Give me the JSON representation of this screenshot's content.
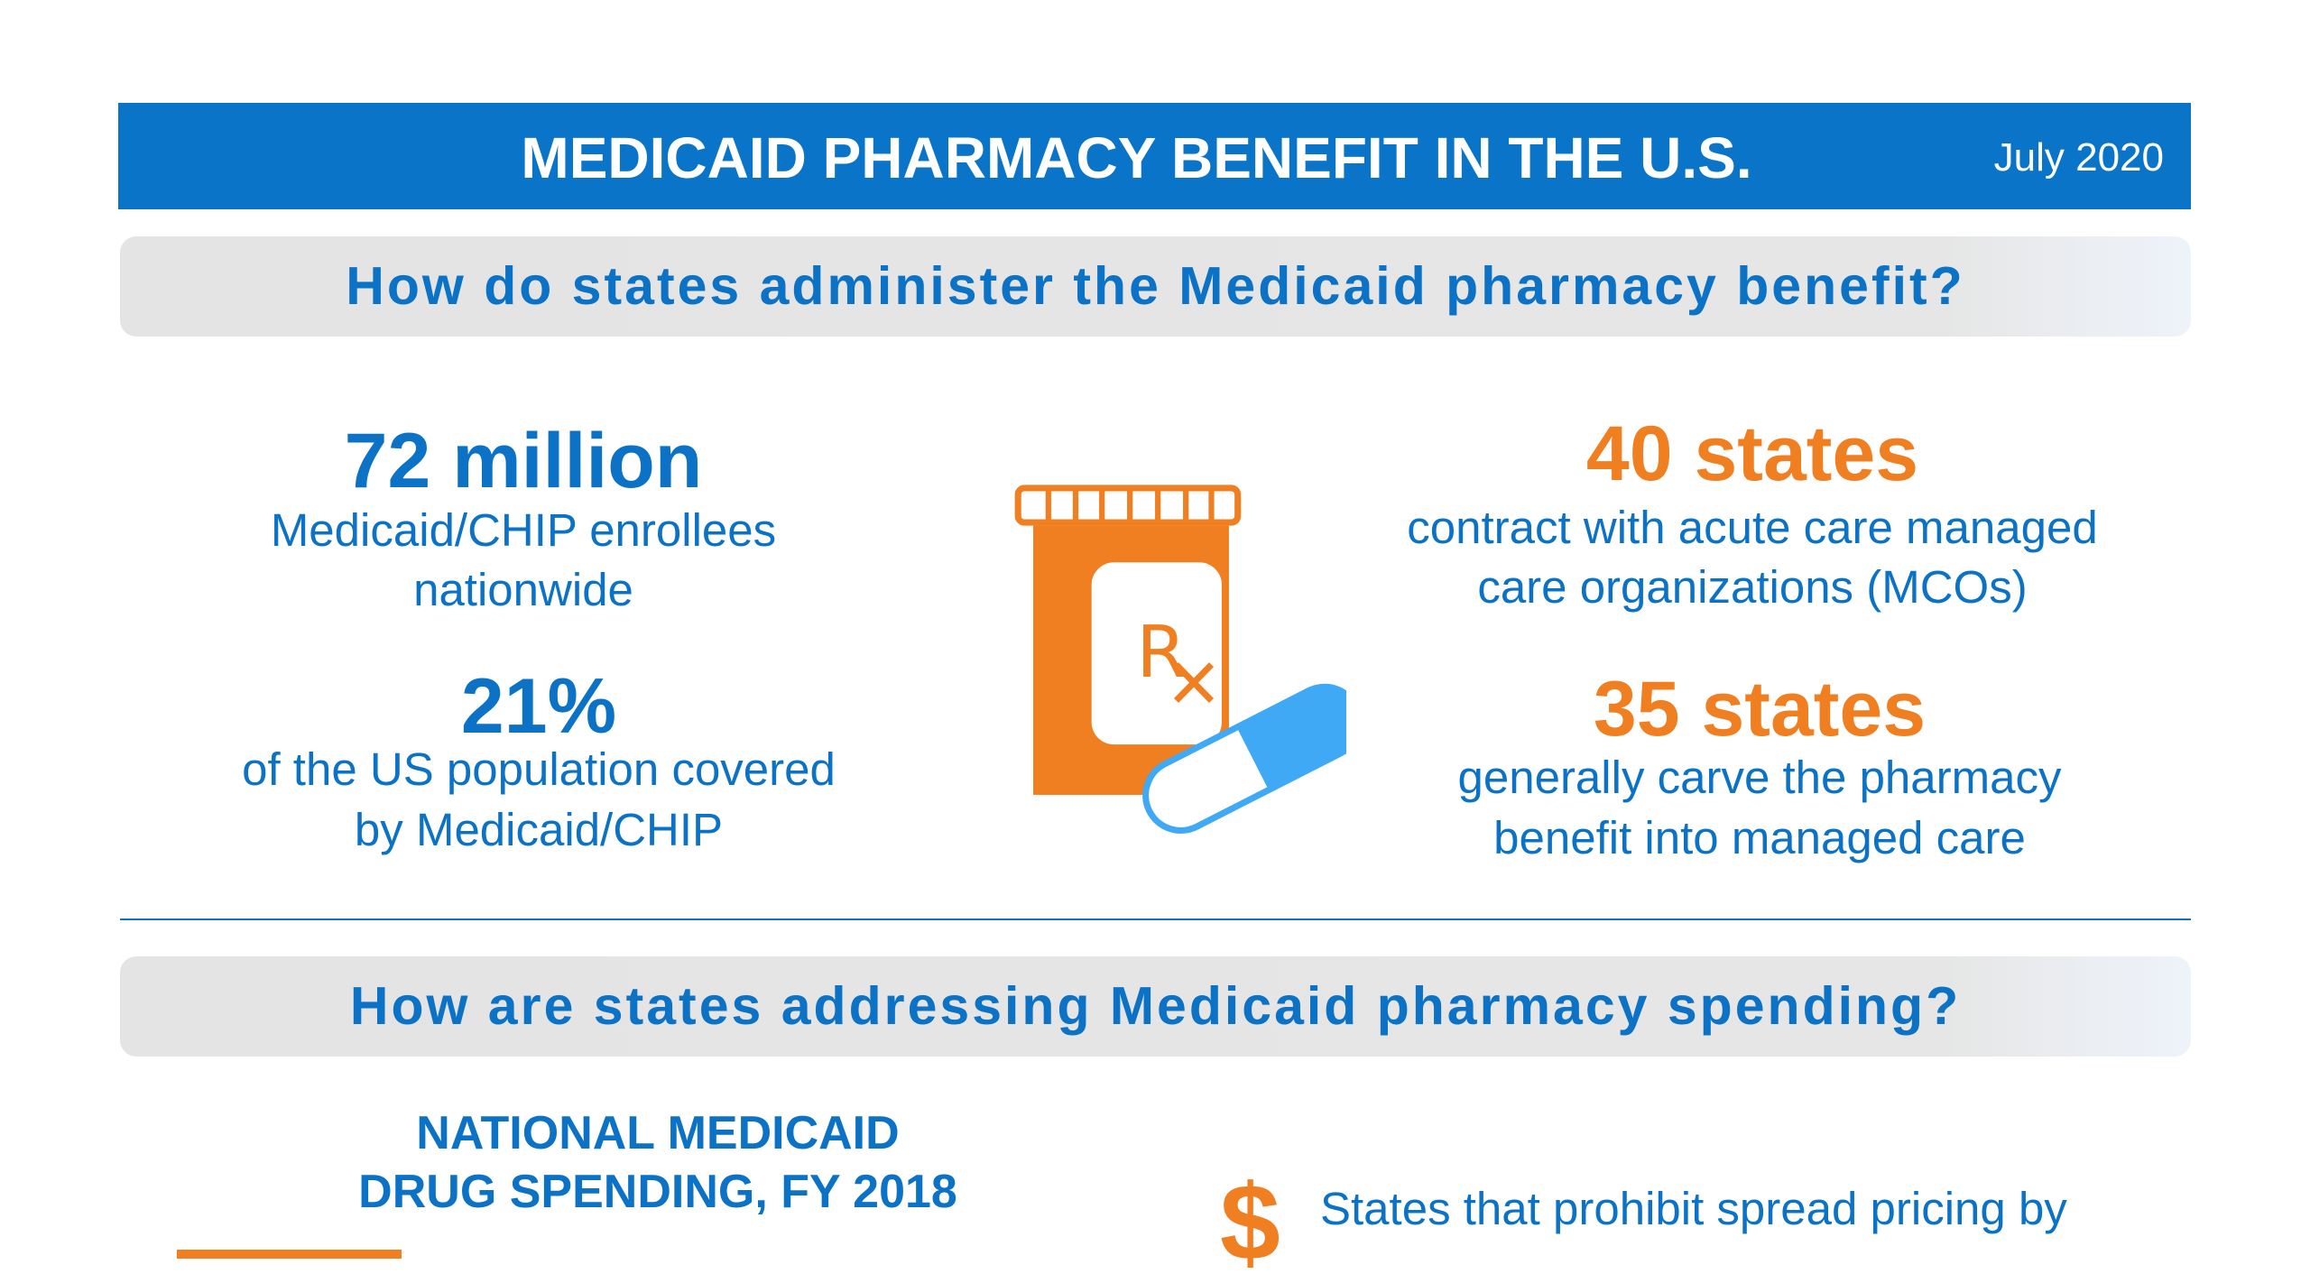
{
  "header": {
    "title": "MEDICAID PHARMACY BENEFIT IN THE U.S.",
    "date": "July 2020"
  },
  "section1": {
    "heading": "How do states administer the Medicaid pharmacy benefit?",
    "left": [
      {
        "value": "72 million",
        "lines": [
          "Medicaid/CHIP enrollees",
          "nationwide"
        ]
      },
      {
        "value": "21%",
        "lines": [
          "of the US population covered",
          "by Medicaid/CHIP"
        ]
      }
    ],
    "right": [
      {
        "value": "40 states",
        "lines": [
          "contract with acute care managed",
          "care organizations (MCOs)"
        ]
      },
      {
        "value": "35 states",
        "lines": [
          "generally carve the pharmacy",
          "benefit into managed care"
        ]
      }
    ],
    "icon": "prescription-bottle-with-pill-icon",
    "rx_label": "Rx"
  },
  "section2": {
    "heading": "How are states addressing Medicaid pharmacy spending?",
    "spending_title": [
      "NATIONAL MEDICAID",
      "DRUG SPENDING, FY 2018"
    ],
    "spread_pricing_text": "States that prohibit spread pricing by",
    "icon": "dollar-sign-icon"
  },
  "colors": {
    "blue": "#0b72c5",
    "orange": "#f07f22",
    "pill_blue": "#3fa9f5",
    "header_bg": "#0a74c9"
  }
}
